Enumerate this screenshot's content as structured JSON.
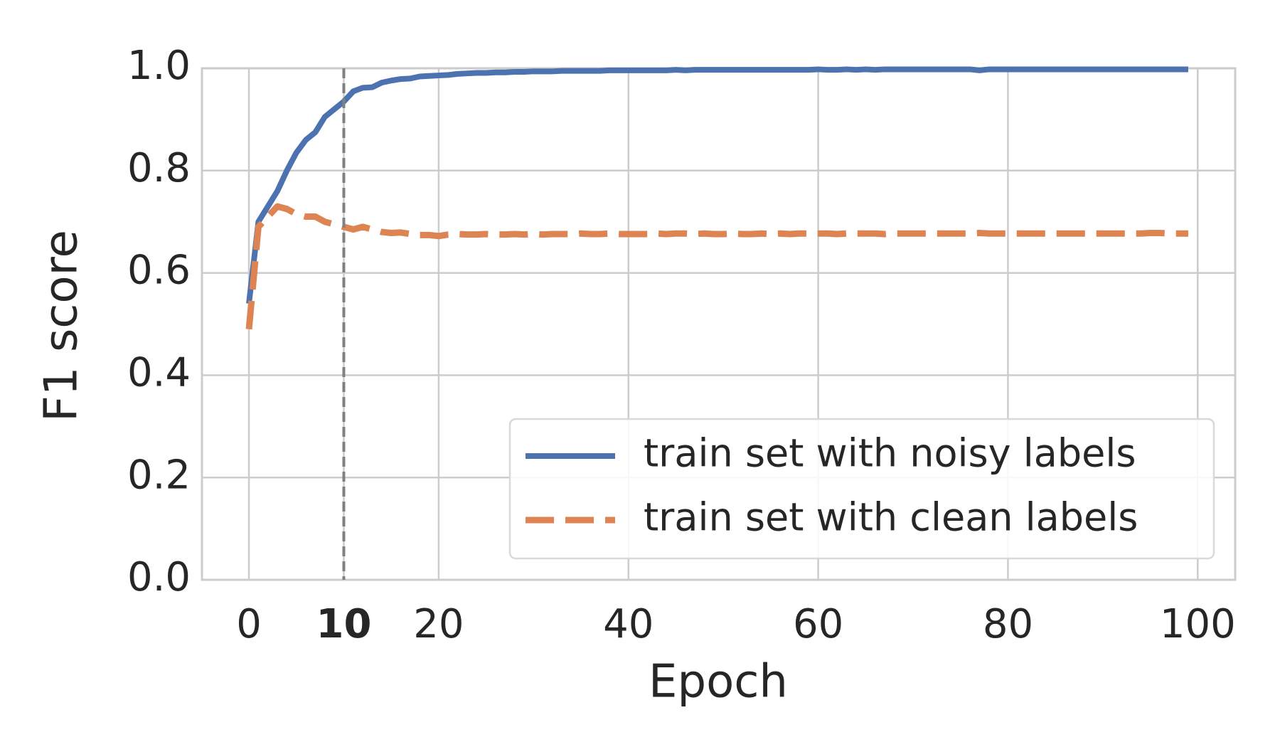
{
  "chart_data": {
    "type": "line",
    "xlabel": "Epoch",
    "ylabel": "F1 score",
    "x": [
      0,
      1,
      2,
      3,
      4,
      5,
      6,
      7,
      8,
      9,
      10,
      11,
      12,
      13,
      14,
      15,
      16,
      17,
      18,
      19,
      20,
      21,
      22,
      23,
      24,
      25,
      26,
      27,
      28,
      29,
      30,
      31,
      32,
      33,
      34,
      35,
      36,
      37,
      38,
      39,
      40,
      41,
      42,
      43,
      44,
      45,
      46,
      47,
      48,
      49,
      50,
      51,
      52,
      53,
      54,
      55,
      56,
      57,
      58,
      59,
      60,
      61,
      62,
      63,
      64,
      65,
      66,
      67,
      68,
      69,
      70,
      71,
      72,
      73,
      74,
      75,
      76,
      77,
      78,
      79,
      80,
      81,
      82,
      83,
      84,
      85,
      86,
      87,
      88,
      89,
      90,
      91,
      92,
      93,
      94,
      95,
      96,
      97,
      98,
      99
    ],
    "series": [
      {
        "name": "train set with noisy labels",
        "color": "#4c72b0",
        "style": "solid",
        "values": [
          0.54,
          0.7,
          0.73,
          0.76,
          0.8,
          0.835,
          0.86,
          0.875,
          0.905,
          0.92,
          0.935,
          0.955,
          0.962,
          0.963,
          0.972,
          0.976,
          0.979,
          0.98,
          0.984,
          0.985,
          0.986,
          0.987,
          0.989,
          0.99,
          0.991,
          0.991,
          0.992,
          0.992,
          0.993,
          0.993,
          0.994,
          0.994,
          0.994,
          0.995,
          0.995,
          0.995,
          0.995,
          0.995,
          0.996,
          0.996,
          0.996,
          0.996,
          0.996,
          0.996,
          0.996,
          0.997,
          0.996,
          0.997,
          0.997,
          0.997,
          0.997,
          0.997,
          0.997,
          0.997,
          0.997,
          0.997,
          0.997,
          0.997,
          0.997,
          0.997,
          0.998,
          0.997,
          0.997,
          0.998,
          0.997,
          0.998,
          0.997,
          0.998,
          0.998,
          0.998,
          0.998,
          0.998,
          0.998,
          0.998,
          0.998,
          0.998,
          0.998,
          0.996,
          0.998,
          0.998,
          0.998,
          0.998,
          0.998,
          0.998,
          0.998,
          0.998,
          0.998,
          0.998,
          0.998,
          0.998,
          0.998,
          0.998,
          0.998,
          0.998,
          0.998,
          0.998,
          0.998,
          0.998,
          0.998,
          0.998
        ]
      },
      {
        "name": "train set with clean labels",
        "color": "#dd8452",
        "style": "dashed",
        "values": [
          0.49,
          0.69,
          0.71,
          0.73,
          0.725,
          0.715,
          0.71,
          0.71,
          0.7,
          0.695,
          0.69,
          0.685,
          0.69,
          0.685,
          0.68,
          0.678,
          0.679,
          0.676,
          0.674,
          0.674,
          0.672,
          0.675,
          0.676,
          0.675,
          0.675,
          0.676,
          0.675,
          0.675,
          0.676,
          0.675,
          0.676,
          0.675,
          0.676,
          0.676,
          0.676,
          0.677,
          0.676,
          0.676,
          0.677,
          0.676,
          0.676,
          0.676,
          0.676,
          0.677,
          0.676,
          0.677,
          0.677,
          0.676,
          0.677,
          0.676,
          0.676,
          0.677,
          0.676,
          0.676,
          0.677,
          0.676,
          0.677,
          0.676,
          0.677,
          0.677,
          0.677,
          0.677,
          0.676,
          0.677,
          0.677,
          0.677,
          0.677,
          0.676,
          0.677,
          0.677,
          0.677,
          0.677,
          0.677,
          0.677,
          0.677,
          0.677,
          0.677,
          0.678,
          0.677,
          0.677,
          0.677,
          0.677,
          0.677,
          0.677,
          0.677,
          0.677,
          0.677,
          0.677,
          0.677,
          0.677,
          0.677,
          0.677,
          0.677,
          0.677,
          0.677,
          0.678,
          0.678,
          0.677,
          0.677,
          0.677
        ]
      }
    ],
    "xlim": [
      -4.95,
      103.95
    ],
    "xticks": [
      0,
      10,
      20,
      40,
      60,
      80,
      100
    ],
    "ylim": [
      0,
      1
    ],
    "yticks": [
      {
        "value": 0,
        "label": "0.0"
      },
      {
        "value": 0.2,
        "label": "0.2"
      },
      {
        "value": 0.4,
        "label": "0.4"
      },
      {
        "value": 0.6,
        "label": "0.6"
      },
      {
        "value": 0.8,
        "label": "0.8"
      },
      {
        "value": 1,
        "label": "1.0"
      }
    ],
    "grid": true,
    "legend": "lower right",
    "vline": {
      "x": 10,
      "color": "#808080"
    },
    "bold_xtick": 10
  }
}
